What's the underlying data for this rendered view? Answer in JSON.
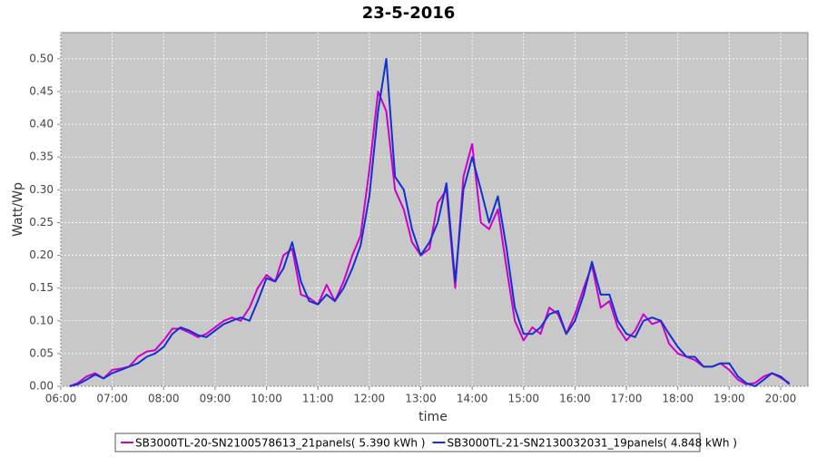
{
  "chart_data": {
    "type": "line",
    "title": "23-5-2016",
    "x_label": "time",
    "y_label": "Watt/Wp",
    "x": [
      6.17,
      6.33,
      6.5,
      6.67,
      6.83,
      7,
      7.17,
      7.33,
      7.5,
      7.67,
      7.83,
      8,
      8.17,
      8.33,
      8.5,
      8.67,
      8.83,
      9,
      9.17,
      9.33,
      9.5,
      9.67,
      9.83,
      10,
      10.17,
      10.33,
      10.5,
      10.67,
      10.83,
      11,
      11.17,
      11.33,
      11.5,
      11.67,
      11.83,
      12,
      12.17,
      12.33,
      12.5,
      12.67,
      12.83,
      13,
      13.17,
      13.33,
      13.5,
      13.67,
      13.83,
      14,
      14.17,
      14.33,
      14.5,
      14.67,
      14.83,
      15,
      15.17,
      15.33,
      15.5,
      15.67,
      15.83,
      16,
      16.17,
      16.33,
      16.5,
      16.67,
      16.83,
      17,
      17.17,
      17.33,
      17.5,
      17.67,
      17.83,
      18,
      18.17,
      18.33,
      18.5,
      18.67,
      18.83,
      19,
      19.17,
      19.33,
      19.5,
      19.67,
      19.83,
      20,
      20.17
    ],
    "series": [
      {
        "name": "SB3000TL-20-SN2100578613_21panels( 5.390 kWh )",
        "color": "#cc00cc",
        "values": [
          0,
          0.005,
          0.015,
          0.02,
          0.012,
          0.025,
          0.027,
          0.03,
          0.045,
          0.053,
          0.055,
          0.07,
          0.088,
          0.088,
          0.082,
          0.075,
          0.08,
          0.09,
          0.1,
          0.105,
          0.1,
          0.12,
          0.15,
          0.17,
          0.16,
          0.2,
          0.21,
          0.14,
          0.135,
          0.125,
          0.155,
          0.13,
          0.16,
          0.2,
          0.23,
          0.33,
          0.45,
          0.42,
          0.3,
          0.27,
          0.22,
          0.2,
          0.21,
          0.28,
          0.3,
          0.15,
          0.32,
          0.37,
          0.25,
          0.24,
          0.27,
          0.18,
          0.1,
          0.07,
          0.09,
          0.08,
          0.12,
          0.11,
          0.08,
          0.11,
          0.15,
          0.185,
          0.12,
          0.13,
          0.09,
          0.07,
          0.085,
          0.11,
          0.095,
          0.1,
          0.065,
          0.05,
          0.045,
          0.04,
          0.03,
          0.03,
          0.035,
          0.025,
          0.01,
          0.003,
          0.005,
          0.015,
          0.02,
          0.013,
          0.005
        ]
      },
      {
        "name": "SB3000TL-21-SN2130032031_19panels( 4.848 kWh )",
        "color": "#1030d0",
        "values": [
          0,
          0.003,
          0.01,
          0.018,
          0.012,
          0.02,
          0.025,
          0.03,
          0.035,
          0.045,
          0.05,
          0.06,
          0.08,
          0.09,
          0.085,
          0.078,
          0.075,
          0.085,
          0.095,
          0.1,
          0.105,
          0.1,
          0.13,
          0.165,
          0.16,
          0.18,
          0.22,
          0.16,
          0.13,
          0.125,
          0.14,
          0.13,
          0.15,
          0.18,
          0.215,
          0.29,
          0.42,
          0.5,
          0.32,
          0.3,
          0.24,
          0.2,
          0.22,
          0.25,
          0.31,
          0.16,
          0.3,
          0.35,
          0.3,
          0.25,
          0.29,
          0.21,
          0.12,
          0.08,
          0.08,
          0.09,
          0.11,
          0.115,
          0.08,
          0.1,
          0.14,
          0.19,
          0.14,
          0.14,
          0.1,
          0.08,
          0.075,
          0.1,
          0.105,
          0.1,
          0.08,
          0.06,
          0.045,
          0.045,
          0.03,
          0.03,
          0.035,
          0.035,
          0.015,
          0.005,
          0,
          0.01,
          0.02,
          0.015,
          0.003
        ]
      }
    ],
    "xlim": [
      6,
      20.53
    ],
    "xticks": [
      {
        "value": 6,
        "label": "06:00"
      },
      {
        "value": 7,
        "label": "07:00"
      },
      {
        "value": 8,
        "label": "08:00"
      },
      {
        "value": 9,
        "label": "09:00"
      },
      {
        "value": 10,
        "label": "10:00"
      },
      {
        "value": 11,
        "label": "11:00"
      },
      {
        "value": 12,
        "label": "12:00"
      },
      {
        "value": 13,
        "label": "13:00"
      },
      {
        "value": 14,
        "label": "14:00"
      },
      {
        "value": 15,
        "label": "15:00"
      },
      {
        "value": 16,
        "label": "16:00"
      },
      {
        "value": 17,
        "label": "17:00"
      },
      {
        "value": 18,
        "label": "18:00"
      },
      {
        "value": 19,
        "label": "19:00"
      },
      {
        "value": 20,
        "label": "20:00"
      }
    ],
    "ylim": [
      0,
      0.54
    ],
    "yticks": [
      {
        "value": 0,
        "label": "0.00"
      },
      {
        "value": 0.05,
        "label": "0.05"
      },
      {
        "value": 0.1,
        "label": "0.10"
      },
      {
        "value": 0.15,
        "label": "0.15"
      },
      {
        "value": 0.2,
        "label": "0.20"
      },
      {
        "value": 0.25,
        "label": "0.25"
      },
      {
        "value": 0.3,
        "label": "0.30"
      },
      {
        "value": 0.35,
        "label": "0.35"
      },
      {
        "value": 0.4,
        "label": "0.40"
      },
      {
        "value": 0.45,
        "label": "0.45"
      },
      {
        "value": 0.5,
        "label": "0.50"
      }
    ],
    "grid": true,
    "legend": "bottom"
  }
}
